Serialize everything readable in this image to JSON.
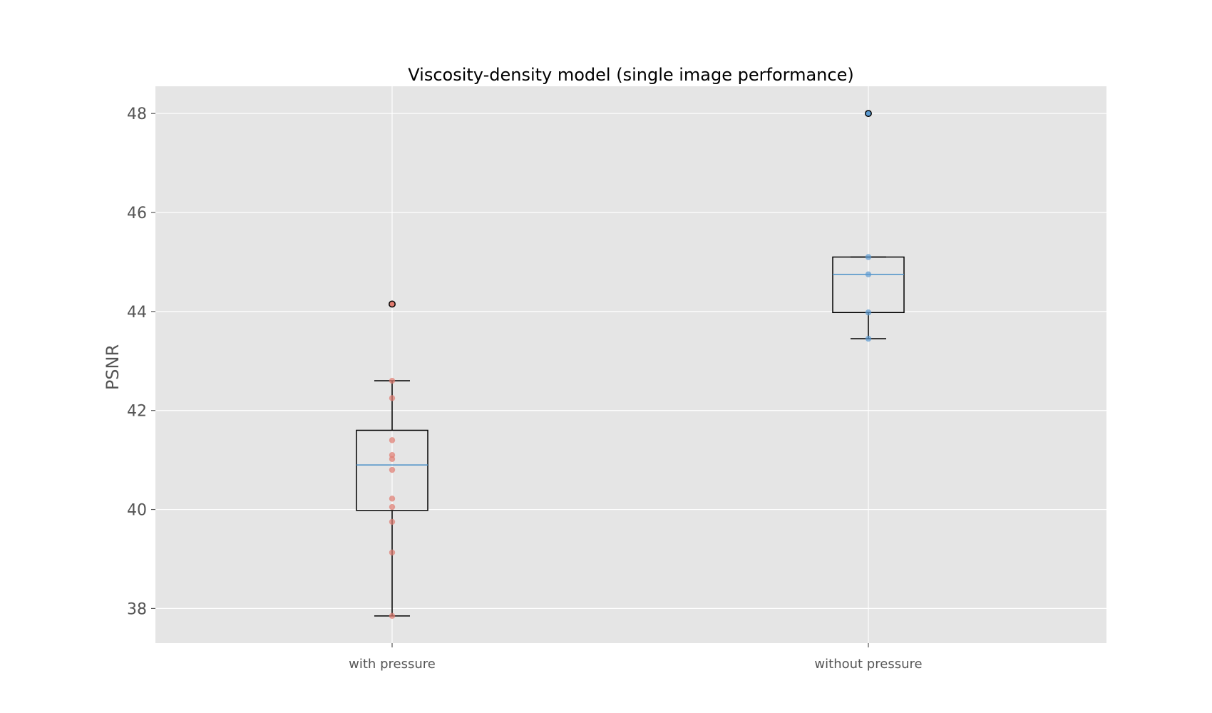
{
  "chart_data": {
    "type": "box",
    "title": "Viscosity-density model (single image performance)",
    "xlabel": "",
    "ylabel": "PSNR",
    "ylim": [
      37.3,
      48.55
    ],
    "yticks": [
      38,
      40,
      42,
      44,
      46,
      48
    ],
    "grid": true,
    "categories": [
      "with pressure",
      "without pressure"
    ],
    "boxes": [
      {
        "category": "with pressure",
        "whisker_low": 37.85,
        "q1": 39.98,
        "median": 40.9,
        "q3": 41.6,
        "whisker_high": 42.6,
        "outliers": [
          44.15
        ],
        "points": [
          37.85,
          39.13,
          39.75,
          40.05,
          40.22,
          40.8,
          41.02,
          41.1,
          41.4,
          42.25,
          42.6,
          44.15
        ]
      },
      {
        "category": "without pressure",
        "whisker_low": 43.45,
        "q1": 43.98,
        "median": 44.75,
        "q3": 45.1,
        "whisker_high": 45.1,
        "outliers": [
          48.0
        ],
        "points": [
          43.45,
          43.98,
          44.75,
          45.1,
          48.0
        ]
      }
    ],
    "colors": {
      "plot_background": "#e5e5e5",
      "grid": "#ffffff",
      "box": "#000000",
      "median": "#4a90c8",
      "points_with_pressure": "#e07b6f",
      "points_without_pressure": "#5b9ad1"
    }
  }
}
